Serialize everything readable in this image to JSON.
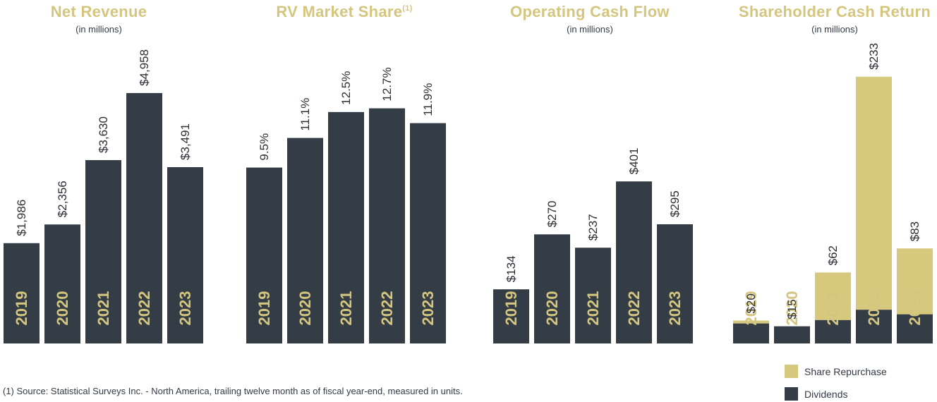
{
  "colors": {
    "bar": "#343c46",
    "repurchase": "#d6c87d",
    "title": "#d4c67e",
    "year_label": "#d4c67e",
    "value_text": "#2b2f36"
  },
  "chart_data": [
    {
      "type": "bar",
      "title": "Net Revenue",
      "subtitle": "(in millions)",
      "categories": [
        "2019",
        "2020",
        "2021",
        "2022",
        "2023"
      ],
      "values": [
        1986,
        2356,
        3630,
        4958,
        3491
      ],
      "labels": [
        "$1,986",
        "$2,356",
        "$3,630",
        "$4,958",
        "$3,491"
      ],
      "ylim": [
        0,
        6800
      ]
    },
    {
      "type": "bar",
      "title": "RV Market Share",
      "title_sup": "(1)",
      "subtitle": "",
      "categories": [
        "2019",
        "2020",
        "2021",
        "2022",
        "2023"
      ],
      "values": [
        9.5,
        11.1,
        12.5,
        12.7,
        11.9
      ],
      "labels": [
        "9.5%",
        "11.1%",
        "12.5%",
        "12.7%",
        "11.9%"
      ],
      "ylim": [
        0,
        18.55
      ]
    },
    {
      "type": "bar",
      "title": "Operating Cash Flow",
      "subtitle": "(in millions)",
      "categories": [
        "2019",
        "2020",
        "2021",
        "2022",
        "2023"
      ],
      "values": [
        134,
        270,
        237,
        401,
        295
      ],
      "labels": [
        "$134",
        "$270",
        "$237",
        "$401",
        "$295"
      ],
      "ylim": [
        0,
        850
      ]
    },
    {
      "type": "bar",
      "stacked": true,
      "title": "Shareholder Cash Return",
      "subtitle": "(in millions)",
      "categories": [
        "2019",
        "2020",
        "2021",
        "2022",
        "2023"
      ],
      "series": [
        {
          "name": "Dividends",
          "values": [
            17.5,
            15,
            20.5,
            29.5,
            25.5
          ]
        },
        {
          "name": "Share Repurchase",
          "values": [
            2.5,
            0,
            41.5,
            203.5,
            57.5
          ]
        }
      ],
      "totals": [
        20,
        15,
        62,
        233,
        83
      ],
      "labels": [
        "$20",
        "$15",
        "$62",
        "$233",
        "$83"
      ],
      "ylim": [
        0,
        300
      ]
    }
  ],
  "legend": {
    "items": [
      "Share Repurchase",
      "Dividends"
    ]
  },
  "footnote": "(1) Source: Statistical Surveys Inc. - North America, trailing twelve month as of fiscal year-end, measured in units."
}
